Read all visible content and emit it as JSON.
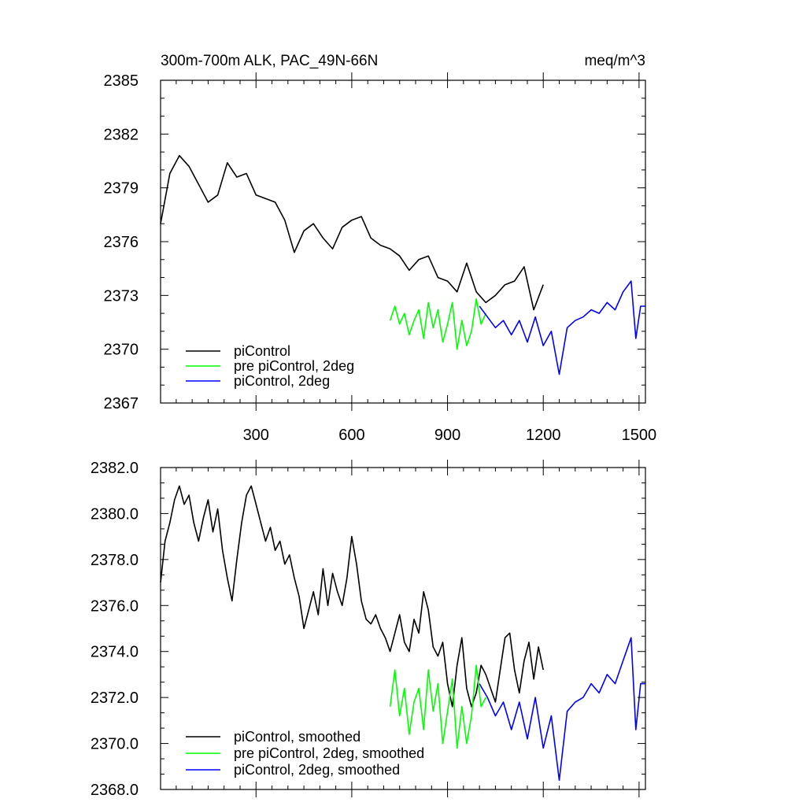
{
  "colors": {
    "series_black": "#000000",
    "series_green": "#00ff00",
    "series_blue": "#0000ff",
    "frame": "#000000",
    "background": "#ffffff"
  },
  "chart_data": [
    {
      "type": "line",
      "title": "300m-700m ALK, PAC_49N-66N",
      "units": "meq/m^3",
      "xlim": [
        1,
        1520
      ],
      "ylim": [
        2367,
        2385
      ],
      "xticks": [
        300,
        600,
        900,
        1200,
        1500
      ],
      "xtick_labels": [
        "300",
        "600",
        "900",
        "1200",
        "1500"
      ],
      "yticks": [
        2367,
        2370,
        2373,
        2376,
        2379,
        2382,
        2385
      ],
      "ytick_labels": [
        "2367",
        "2370",
        "2373",
        "2376",
        "2379",
        "2382",
        "2385"
      ],
      "legend": "bottom-left",
      "grid": false,
      "series": [
        {
          "name": "piControl",
          "color": "#000000",
          "x": [
            1,
            30,
            60,
            90,
            120,
            150,
            180,
            210,
            240,
            270,
            300,
            330,
            360,
            390,
            420,
            450,
            480,
            510,
            540,
            570,
            600,
            630,
            660,
            690,
            720,
            750,
            780,
            810,
            840,
            870,
            900,
            930,
            960,
            990,
            1020,
            1050,
            1080,
            1110,
            1140,
            1170,
            1200
          ],
          "y": [
            2377.0,
            2379.8,
            2380.8,
            2380.2,
            2379.2,
            2378.2,
            2378.6,
            2380.4,
            2379.6,
            2379.8,
            2378.6,
            2378.4,
            2378.2,
            2377.2,
            2375.4,
            2376.6,
            2377.0,
            2376.2,
            2375.6,
            2376.8,
            2377.2,
            2377.4,
            2376.2,
            2375.8,
            2375.6,
            2375.2,
            2374.4,
            2375.0,
            2375.2,
            2374.0,
            2373.8,
            2373.2,
            2374.8,
            2373.2,
            2372.6,
            2373.0,
            2373.6,
            2373.8,
            2374.6,
            2372.2,
            2373.6
          ]
        },
        {
          "name": "pre piControl, 2deg",
          "color": "#00ff00",
          "x": [
            720,
            735,
            750,
            765,
            780,
            795,
            810,
            825,
            840,
            855,
            870,
            885,
            900,
            915,
            930,
            945,
            960,
            975,
            990,
            1005,
            1020
          ],
          "y": [
            2371.6,
            2372.4,
            2371.4,
            2372.0,
            2370.8,
            2371.6,
            2372.2,
            2370.6,
            2372.6,
            2371.2,
            2372.2,
            2370.4,
            2371.4,
            2372.6,
            2370.0,
            2371.6,
            2370.2,
            2371.0,
            2372.8,
            2371.4,
            2372.0
          ]
        },
        {
          "name": "piControl, 2deg",
          "color": "#0000ff",
          "x": [
            1000,
            1025,
            1050,
            1075,
            1100,
            1125,
            1150,
            1175,
            1200,
            1225,
            1250,
            1275,
            1300,
            1325,
            1350,
            1375,
            1400,
            1425,
            1450,
            1475,
            1490,
            1505,
            1520
          ],
          "y": [
            2372.4,
            2371.8,
            2371.2,
            2371.6,
            2370.8,
            2371.6,
            2370.4,
            2371.8,
            2370.2,
            2371.0,
            2368.6,
            2371.2,
            2371.6,
            2371.8,
            2372.2,
            2372.0,
            2372.6,
            2372.2,
            2373.2,
            2373.8,
            2370.6,
            2372.4,
            2372.4
          ]
        }
      ]
    },
    {
      "type": "line",
      "title": "",
      "xlim": [
        1,
        1520
      ],
      "ylim": [
        2368.0,
        2382.0
      ],
      "xticks": [
        300,
        600,
        900,
        1200,
        1500
      ],
      "yticks": [
        2368.0,
        2370.0,
        2372.0,
        2374.0,
        2376.0,
        2378.0,
        2380.0,
        2382.0
      ],
      "ytick_labels": [
        "2368.0",
        "2370.0",
        "2372.0",
        "2374.0",
        "2376.0",
        "2378.0",
        "2380.0",
        "2382.0"
      ],
      "legend": "bottom-left",
      "grid": false,
      "series": [
        {
          "name": "piControl, smoothed",
          "color": "#000000",
          "x": [
            1,
            15,
            30,
            45,
            60,
            75,
            90,
            105,
            120,
            135,
            150,
            165,
            180,
            195,
            210,
            225,
            240,
            255,
            270,
            285,
            300,
            315,
            330,
            345,
            360,
            375,
            390,
            405,
            420,
            435,
            450,
            465,
            480,
            495,
            510,
            525,
            540,
            555,
            570,
            585,
            600,
            615,
            630,
            645,
            660,
            675,
            690,
            705,
            720,
            735,
            750,
            765,
            780,
            795,
            810,
            825,
            840,
            855,
            870,
            885,
            900,
            915,
            930,
            945,
            960,
            975,
            990,
            1005,
            1020,
            1035,
            1050,
            1065,
            1080,
            1095,
            1110,
            1125,
            1140,
            1155,
            1170,
            1185,
            1200
          ],
          "y": [
            2377.0,
            2378.8,
            2379.6,
            2380.6,
            2381.2,
            2380.4,
            2380.8,
            2379.6,
            2378.8,
            2379.8,
            2380.6,
            2379.2,
            2380.2,
            2378.4,
            2377.2,
            2376.2,
            2378.0,
            2379.6,
            2380.8,
            2381.2,
            2380.4,
            2379.6,
            2378.8,
            2379.4,
            2378.4,
            2378.8,
            2377.8,
            2378.2,
            2377.2,
            2376.4,
            2375.0,
            2375.8,
            2376.6,
            2375.6,
            2377.6,
            2376.0,
            2377.4,
            2376.6,
            2376.0,
            2377.2,
            2379.0,
            2377.8,
            2376.2,
            2375.4,
            2375.2,
            2375.6,
            2375.0,
            2374.6,
            2374.0,
            2374.8,
            2375.6,
            2374.4,
            2374.0,
            2375.4,
            2374.8,
            2376.6,
            2375.8,
            2374.2,
            2373.8,
            2374.4,
            2372.6,
            2371.6,
            2373.4,
            2374.6,
            2372.4,
            2371.6,
            2372.2,
            2373.4,
            2373.0,
            2372.4,
            2371.8,
            2373.2,
            2374.6,
            2374.8,
            2373.2,
            2372.2,
            2373.6,
            2374.4,
            2372.8,
            2374.2,
            2373.2
          ]
        },
        {
          "name": "pre piControl, 2deg, smoothed",
          "color": "#00ff00",
          "x": [
            720,
            735,
            750,
            765,
            780,
            795,
            810,
            825,
            840,
            855,
            870,
            885,
            900,
            915,
            930,
            945,
            960,
            975,
            990,
            1005,
            1020
          ],
          "y": [
            2371.6,
            2373.2,
            2371.2,
            2372.4,
            2370.4,
            2371.8,
            2372.4,
            2370.6,
            2373.2,
            2371.4,
            2372.6,
            2370.0,
            2371.4,
            2372.8,
            2369.8,
            2371.6,
            2370.0,
            2371.2,
            2373.4,
            2371.6,
            2372.0
          ]
        },
        {
          "name": "piControl, 2deg, smoothed",
          "color": "#0000ff",
          "x": [
            1000,
            1025,
            1050,
            1075,
            1100,
            1125,
            1150,
            1175,
            1200,
            1225,
            1250,
            1275,
            1300,
            1325,
            1350,
            1375,
            1400,
            1425,
            1450,
            1475,
            1490,
            1505,
            1520
          ],
          "y": [
            2372.6,
            2372.0,
            2371.2,
            2371.8,
            2370.6,
            2371.8,
            2370.2,
            2372.0,
            2369.8,
            2371.2,
            2368.4,
            2371.4,
            2371.8,
            2372.0,
            2372.6,
            2372.2,
            2373.0,
            2372.6,
            2373.6,
            2374.6,
            2370.6,
            2372.6,
            2372.6
          ]
        }
      ]
    }
  ]
}
